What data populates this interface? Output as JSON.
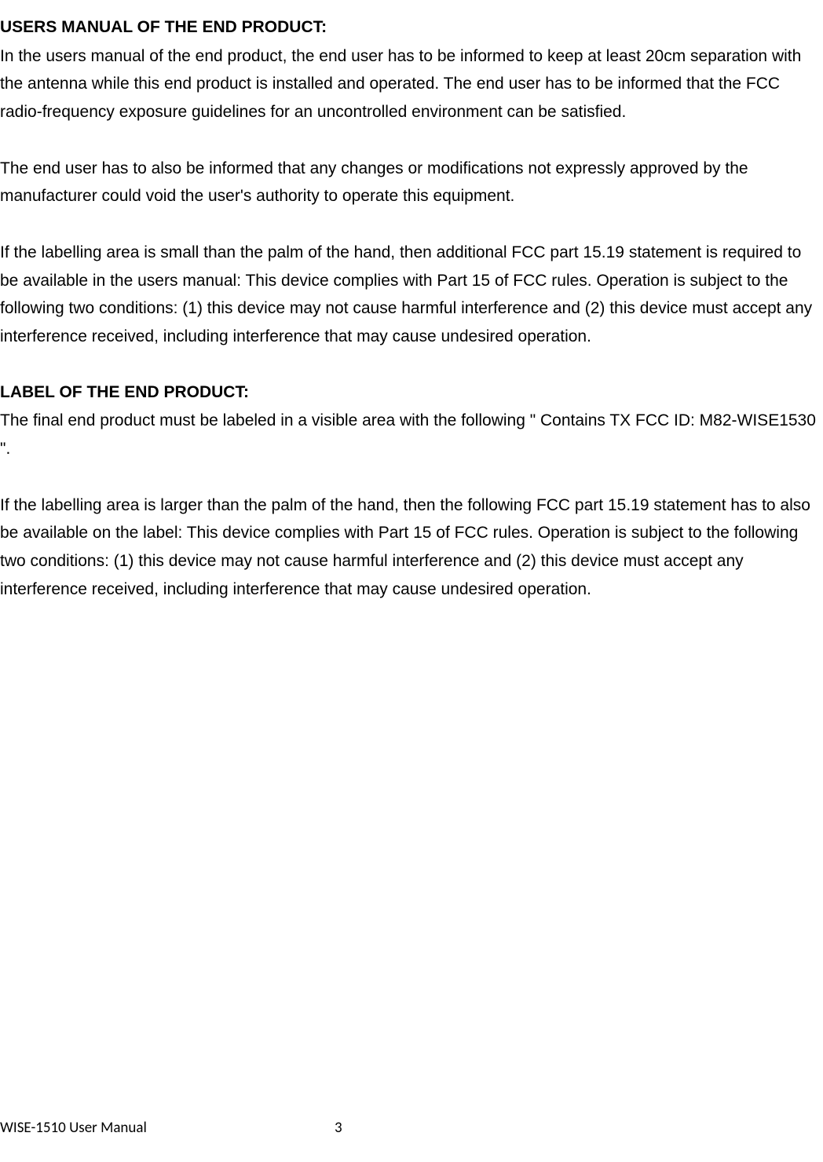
{
  "section1": {
    "heading": "USERS MANUAL OF THE END PRODUCT:",
    "para1": "In the users manual of the end product, the end user has to be informed to keep at least 20cm separation with the antenna while this end product is installed and operated. The end user has to be informed that the FCC radio-frequency exposure guidelines for an uncontrolled environment can be satisfied.",
    "para2": "The end user has to also be informed that any changes or modifications not expressly approved by the manufacturer could void the user's authority to operate this equipment.",
    "para3": "If the labelling area is small than the palm of the hand, then additional FCC part 15.19 statement is required to be available in the users manual: This device complies with Part 15 of FCC rules. Operation is subject to the following two conditions: (1) this device may not cause harmful interference and (2) this device must accept any interference received, including interference that may cause undesired operation."
  },
  "section2": {
    "heading": "LABEL OF THE END PRODUCT:",
    "para1": "The final end product must be labeled in a visible area with the following \" Contains TX FCC ID: M82-WISE1530 \".",
    "para2": "If the labelling area is larger than the palm of the hand, then the following FCC part 15.19 statement has to also be available on the label: This device complies with Part 15 of FCC rules. Operation is subject to the following two conditions: (1) this device may not cause harmful interference and (2) this device must accept any interference received, including interference that may cause undesired operation."
  },
  "footer": {
    "title": "WISE-1510 User Manual",
    "page": "3"
  }
}
